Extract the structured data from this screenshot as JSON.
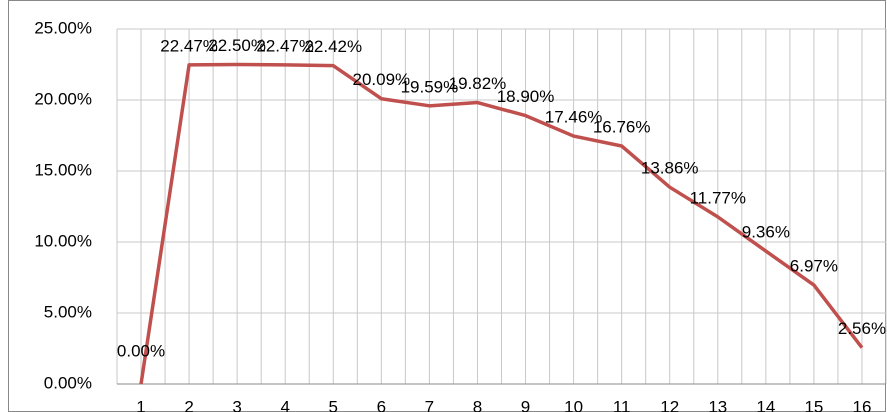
{
  "chart_data": {
    "type": "line",
    "categories": [
      "1",
      "2",
      "3",
      "4",
      "5",
      "6",
      "7",
      "8",
      "9",
      "10",
      "11",
      "12",
      "13",
      "14",
      "15",
      "16"
    ],
    "series": [
      {
        "color": "#c0504d",
        "values": [
          0.0,
          22.47,
          22.5,
          22.47,
          22.42,
          20.09,
          19.59,
          19.82,
          18.9,
          17.46,
          16.76,
          13.86,
          11.77,
          9.36,
          6.97,
          2.56
        ],
        "value_labels": [
          "0.00%",
          "22.47%",
          "22.50%",
          "22.47%",
          "22.42%",
          "20.09%",
          "19.59%",
          "19.82%",
          "18.90%",
          "17.46%",
          "16.76%",
          "13.86%",
          "11.77%",
          "9.36%",
          "6.97%",
          "2.56%"
        ]
      }
    ],
    "ylim": [
      0,
      25
    ],
    "yticks": [
      {
        "value": 0,
        "label": "0.00%"
      },
      {
        "value": 5,
        "label": "5.00%"
      },
      {
        "value": 10,
        "label": "10.00%"
      },
      {
        "value": 15,
        "label": "15.00%"
      },
      {
        "value": 20,
        "label": "20.00%"
      },
      {
        "value": 25,
        "label": "25.00%"
      }
    ],
    "grid": true
  }
}
